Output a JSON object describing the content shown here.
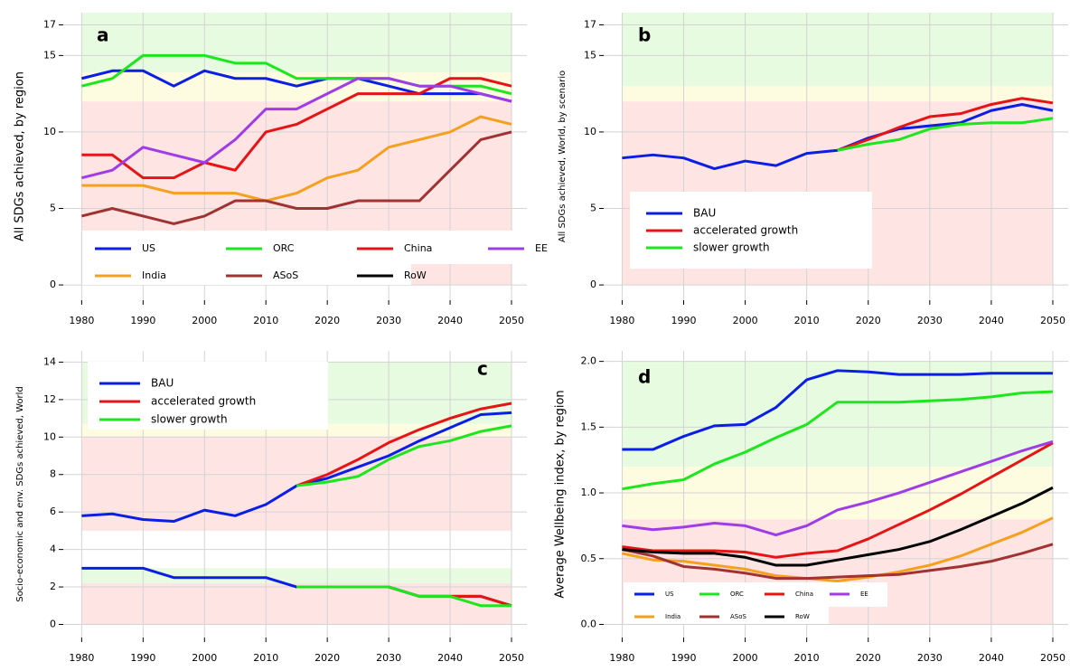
{
  "chart_data": [
    {
      "type": "line",
      "panel": "a",
      "ylabel": "All SDGs achieved, by region",
      "x": [
        1980,
        1985,
        1990,
        1995,
        2000,
        2005,
        2010,
        2015,
        2020,
        2025,
        2030,
        2035,
        2040,
        2045,
        2050
      ],
      "xlim": [
        1977,
        2052.5
      ],
      "xticks": [
        1980,
        1990,
        2000,
        2010,
        2020,
        2030,
        2040,
        2050
      ],
      "ylim": [
        -1,
        17.8
      ],
      "yticks": [
        0,
        5,
        10,
        15,
        17
      ],
      "bands": [
        {
          "from": 0,
          "to": 12,
          "color": "#ffe4e4"
        },
        {
          "from": 12,
          "to": 13.9,
          "color": "#fdfbe0"
        },
        {
          "from": 13.9,
          "to": 17.8,
          "color": "#e6fbe0"
        }
      ],
      "series": [
        {
          "name": "US",
          "color": "#0a1ee6",
          "values": [
            13.5,
            14,
            14,
            13,
            14,
            13.5,
            13.5,
            13,
            13.5,
            13.5,
            13,
            12.5,
            12.5,
            12.5,
            12
          ]
        },
        {
          "name": "ORC",
          "color": "#1ee61e",
          "values": [
            13,
            13.5,
            15,
            15,
            15,
            14.5,
            14.5,
            13.5,
            13.5,
            13.5,
            13.5,
            13,
            13,
            13,
            12.5
          ]
        },
        {
          "name": "China",
          "color": "#e61414",
          "values": [
            8.5,
            8.5,
            7,
            7,
            8,
            7.5,
            10,
            10.5,
            11.5,
            12.5,
            12.5,
            12.5,
            13.5,
            13.5,
            13
          ]
        },
        {
          "name": "EE",
          "color": "#a03ce6",
          "values": [
            7,
            7.5,
            9,
            8.5,
            8,
            9.5,
            11.5,
            11.5,
            12.5,
            13.5,
            13.5,
            13,
            13,
            12.5,
            12
          ]
        },
        {
          "name": "India",
          "color": "#f5a01e",
          "values": [
            6.5,
            6.5,
            6.5,
            6,
            6,
            6,
            5.5,
            6,
            7,
            7.5,
            9,
            9.5,
            10,
            11,
            10.5
          ]
        },
        {
          "name": "ASoS",
          "color": "#a03232",
          "values": [
            4.5,
            5,
            4.5,
            4,
            4.5,
            5.5,
            5.5,
            5,
            5,
            5.5,
            5.5,
            5.5,
            7.5,
            9.5,
            10
          ]
        },
        {
          "name": "RoW",
          "color": "#000000"
        }
      ]
    },
    {
      "type": "line",
      "panel": "b",
      "ylabel": "All SDGs achieved, World, by scenario",
      "x": [
        1980,
        1985,
        1990,
        1995,
        2000,
        2005,
        2010,
        2015,
        2020,
        2025,
        2030,
        2035,
        2040,
        2045,
        2050
      ],
      "xlim": [
        1977,
        2052.5
      ],
      "xticks": [
        1980,
        1990,
        2000,
        2010,
        2020,
        2030,
        2040,
        2050
      ],
      "ylim": [
        -1,
        17.8
      ],
      "yticks": [
        0,
        5,
        10,
        15,
        17
      ],
      "bands": [
        {
          "from": 0,
          "to": 12,
          "color": "#ffe4e4"
        },
        {
          "from": 12,
          "to": 13,
          "color": "#fdfbe0"
        },
        {
          "from": 13,
          "to": 17.8,
          "color": "#e6fbe0"
        }
      ],
      "series": [
        {
          "name": "BAU",
          "color": "#0a1ee6",
          "values": [
            8.3,
            8.5,
            8.3,
            7.6,
            8.1,
            7.8,
            8.6,
            8.8,
            9.6,
            10.2,
            10.4,
            10.6,
            11.4,
            11.8,
            11.4
          ]
        },
        {
          "name": "accelerated growth",
          "color": "#e61414",
          "values": [
            null,
            null,
            null,
            null,
            null,
            null,
            null,
            8.8,
            9.5,
            10.3,
            11,
            11.2,
            11.8,
            12.2,
            11.9
          ]
        },
        {
          "name": "slower growth",
          "color": "#1ee61e",
          "values": [
            null,
            null,
            null,
            null,
            null,
            null,
            null,
            8.8,
            9.2,
            9.5,
            10.2,
            10.5,
            10.6,
            10.6,
            10.9
          ]
        }
      ]
    },
    {
      "type": "line",
      "panel": "c",
      "ylabel": "Socio-economic and env. SDGs achieved, World",
      "x": [
        1980,
        1985,
        1990,
        1995,
        2000,
        2005,
        2010,
        2015,
        2020,
        2025,
        2030,
        2035,
        2040,
        2045,
        2050
      ],
      "xlim": [
        1977,
        2052.5
      ],
      "xticks": [
        1980,
        1990,
        2000,
        2010,
        2020,
        2030,
        2040,
        2050
      ],
      "ylim": [
        -0.7,
        14.6
      ],
      "yticks": [
        0,
        2,
        4,
        6,
        8,
        10,
        12,
        14
      ],
      "bands": [
        {
          "from": 0,
          "to": 2.2,
          "color": "#ffe4e4"
        },
        {
          "from": 2.2,
          "to": 3,
          "color": "#e6fbe0"
        },
        {
          "from": 5,
          "to": 10,
          "color": "#ffe4e4"
        },
        {
          "from": 10,
          "to": 10.7,
          "color": "#fdfbe0"
        },
        {
          "from": 10.7,
          "to": 14,
          "color": "#e6fbe0"
        }
      ],
      "series": [
        {
          "name": "BAU",
          "color": "#0a1ee6",
          "values": [
            5.8,
            5.9,
            5.6,
            5.5,
            6.1,
            5.8,
            6.4,
            7.4,
            7.8,
            8.4,
            9,
            9.8,
            10.5,
            11.2,
            11.3
          ],
          "values_2": [
            3,
            3,
            3,
            2.5,
            2.5,
            2.5,
            2.5,
            2,
            2,
            2,
            2,
            1.5,
            1.5,
            1.5,
            1
          ]
        },
        {
          "name": "accelerated growth",
          "color": "#e61414",
          "values": [
            null,
            null,
            null,
            null,
            null,
            null,
            null,
            7.4,
            8,
            8.8,
            9.7,
            10.4,
            11,
            11.5,
            11.8
          ],
          "values_2": [
            null,
            null,
            null,
            null,
            null,
            null,
            null,
            2,
            2,
            2,
            2,
            1.5,
            1.5,
            1.5,
            1
          ]
        },
        {
          "name": "slower growth",
          "color": "#1ee61e",
          "values": [
            null,
            null,
            null,
            null,
            null,
            null,
            null,
            7.4,
            7.6,
            7.9,
            8.8,
            9.5,
            9.8,
            10.3,
            10.6
          ],
          "values_2": [
            null,
            null,
            null,
            null,
            null,
            null,
            null,
            2,
            2,
            2,
            2,
            1.5,
            1.5,
            1,
            1
          ]
        }
      ]
    },
    {
      "type": "line",
      "panel": "d",
      "ylabel": "Average Wellbeing index, by region",
      "x": [
        1980,
        1985,
        1990,
        1995,
        2000,
        2005,
        2010,
        2015,
        2020,
        2025,
        2030,
        2035,
        2040,
        2045,
        2050
      ],
      "xlim": [
        1977,
        2052.5
      ],
      "xticks": [
        1980,
        1990,
        2000,
        2010,
        2020,
        2030,
        2040,
        2050
      ],
      "ylim": [
        -0.1,
        2.08
      ],
      "yticks": [
        {
          "value": 0,
          "label": "0.0"
        },
        0.5,
        {
          "value": 1,
          "label": "1.0"
        },
        1.5,
        {
          "value": 2,
          "label": "2.0"
        }
      ],
      "bands": [
        {
          "from": 0,
          "to": 0.8,
          "color": "#ffe4e4"
        },
        {
          "from": 0.8,
          "to": 1.2,
          "color": "#fdfbe0"
        },
        {
          "from": 1.2,
          "to": 2,
          "color": "#e6fbe0"
        }
      ],
      "series": [
        {
          "name": "US",
          "color": "#0a1ee6",
          "values": [
            1.33,
            1.33,
            1.43,
            1.51,
            1.52,
            1.65,
            1.86,
            1.93,
            1.92,
            1.9,
            1.9,
            1.9,
            1.91,
            1.91,
            1.91
          ]
        },
        {
          "name": "ORC",
          "color": "#1ee61e",
          "values": [
            1.03,
            1.07,
            1.1,
            1.22,
            1.31,
            1.42,
            1.52,
            1.69,
            1.69,
            1.69,
            1.7,
            1.71,
            1.73,
            1.76,
            1.77
          ]
        },
        {
          "name": "China",
          "color": "#e61414",
          "values": [
            0.59,
            0.56,
            0.56,
            0.56,
            0.55,
            0.51,
            0.54,
            0.56,
            0.65,
            0.76,
            0.87,
            0.99,
            1.12,
            1.25,
            1.38
          ]
        },
        {
          "name": "EE",
          "color": "#a03ce6",
          "values": [
            0.75,
            0.72,
            0.74,
            0.77,
            0.75,
            0.68,
            0.75,
            0.87,
            0.93,
            1,
            1.08,
            1.16,
            1.24,
            1.32,
            1.39
          ]
        },
        {
          "name": "India",
          "color": "#f5a01e",
          "values": [
            0.54,
            0.49,
            0.48,
            0.45,
            0.42,
            0.37,
            0.35,
            0.33,
            0.36,
            0.4,
            0.45,
            0.52,
            0.61,
            0.7,
            0.81
          ]
        },
        {
          "name": "ASoS",
          "color": "#a03232",
          "values": [
            0.57,
            0.52,
            0.44,
            0.42,
            0.39,
            0.35,
            0.35,
            0.36,
            0.37,
            0.38,
            0.41,
            0.44,
            0.48,
            0.54,
            0.61
          ]
        },
        {
          "name": "RoW",
          "color": "#000000",
          "values": [
            0.57,
            0.55,
            0.54,
            0.54,
            0.51,
            0.45,
            0.45,
            0.49,
            0.53,
            0.57,
            0.63,
            0.72,
            0.82,
            0.92,
            1.04
          ]
        }
      ]
    }
  ]
}
